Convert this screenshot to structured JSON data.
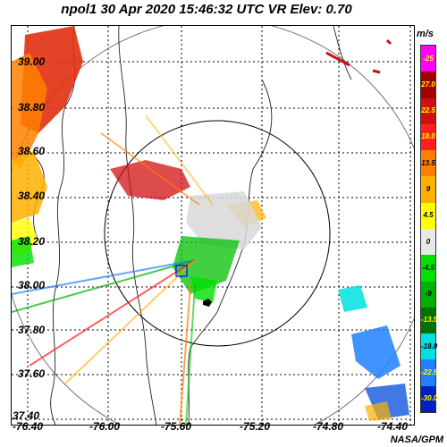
{
  "title": "npol1  30 Apr 2020 15:46:32 UTC  VR  Elev: 0.70",
  "credit": "NASA/GPM",
  "legend": {
    "unit": "m/s",
    "entries": [
      {
        "label": "-25",
        "color": "#ff00ff"
      },
      {
        "label": "27.0",
        "color": "#a00000"
      },
      {
        "label": "22.5",
        "color": "#d01010"
      },
      {
        "label": "18.0",
        "color": "#ff1f1f"
      },
      {
        "label": "13.5",
        "color": "#ff8000"
      },
      {
        "label": "9",
        "color": "#ffb000"
      },
      {
        "label": "4.5",
        "color": "#ffff00"
      },
      {
        "label": "0",
        "color": "#e8e8e8"
      },
      {
        "label": "-4.5",
        "color": "#00e000"
      },
      {
        "label": "-9",
        "color": "#00b000"
      },
      {
        "label": "-13.5",
        "color": "#007000"
      },
      {
        "label": "-18.0",
        "color": "#00e0e0"
      },
      {
        "label": "-22.5",
        "color": "#2080ff"
      },
      {
        "label": "-30.0",
        "color": "#0020c0"
      }
    ]
  },
  "lat_labels": [
    "39.00",
    "38.80",
    "38.60",
    "38.40",
    "38.20",
    "38.00",
    "37.80",
    "37.60",
    "37.40"
  ],
  "lon_labels": [
    "-76.40",
    "-76.00",
    "-75.60",
    "-75.20",
    "-74.80",
    "-74.40"
  ]
}
